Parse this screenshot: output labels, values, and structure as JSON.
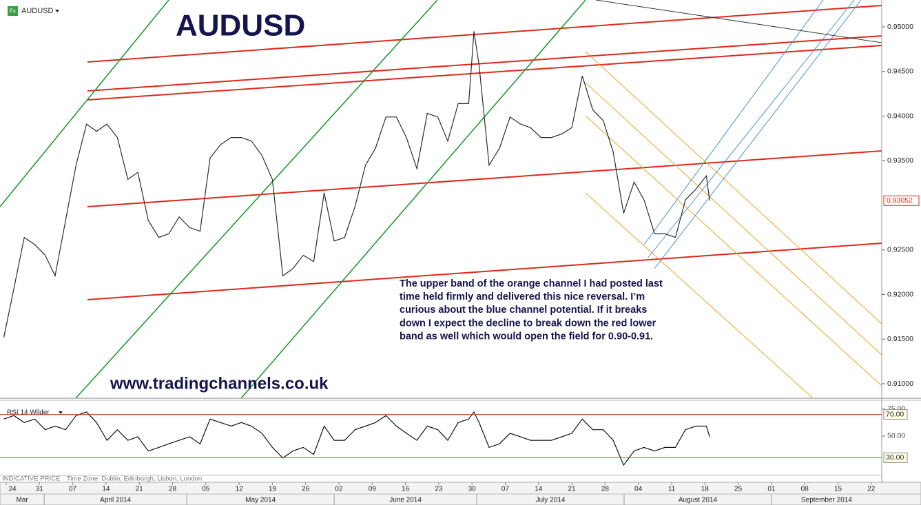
{
  "header": {
    "symbol": "AUDUSD",
    "icon": "Fx"
  },
  "chart_data": [
    {
      "type": "line",
      "title": "AUDUSD",
      "annotation": [
        "The upper band of the orange channel I had posted last",
        "time held firmly and delivered this nice reversal. I’m",
        "curious about the blue channel potential. If it breaks",
        "down I expect the decline to break down the red lower",
        "band as well which would open the field for 0.90-0.91."
      ],
      "watermark": "www.tradingchannels.co.uk",
      "color": "#2b2b2b",
      "x": [
        -7.5,
        -5.4,
        -3.2,
        -1.0,
        1.2,
        3.3,
        5.5,
        7.7,
        9.9,
        12.0,
        14.2,
        16.4,
        18.6,
        20.7,
        22.9,
        25.1,
        27.2,
        29.4,
        31.6,
        33.8,
        35.9,
        38.1,
        40.3,
        42.5,
        44.6,
        46.8,
        49.0,
        51.2,
        53.3,
        55.5,
        57.7,
        59.9,
        62.0,
        64.2,
        66.4,
        68.6,
        70.7,
        72.9,
        75.1,
        77.2,
        79.4,
        81.6,
        83.8,
        85.9,
        88.1,
        90.3,
        91.4,
        92.5,
        94.6,
        96.8,
        99.0,
        101.2,
        103.3,
        105.5,
        107.7,
        109.9,
        112.0,
        114.2,
        116.4,
        118.6,
        120.7,
        122.9,
        125.1,
        127.2,
        129.4,
        131.6,
        133.8,
        135.9,
        138.1,
        140.3,
        141.0
      ],
      "values": [
        0.9152,
        0.9206,
        0.9264,
        0.9256,
        0.9244,
        0.9221,
        0.9283,
        0.9345,
        0.9391,
        0.9383,
        0.9391,
        0.9376,
        0.9329,
        0.9337,
        0.9283,
        0.9264,
        0.9268,
        0.9287,
        0.9275,
        0.9271,
        0.9353,
        0.9368,
        0.9376,
        0.9376,
        0.9372,
        0.9356,
        0.9329,
        0.9221,
        0.9229,
        0.9244,
        0.9237,
        0.9314,
        0.926,
        0.9264,
        0.9299,
        0.9345,
        0.9364,
        0.9399,
        0.9399,
        0.9376,
        0.9341,
        0.9403,
        0.9399,
        0.9372,
        0.9414,
        0.9414,
        0.9495,
        0.9457,
        0.9345,
        0.9364,
        0.9399,
        0.9391,
        0.9387,
        0.9376,
        0.9376,
        0.938,
        0.9387,
        0.9445,
        0.9407,
        0.9395,
        0.936,
        0.9291,
        0.9326,
        0.9306,
        0.9268,
        0.9268,
        0.9264,
        0.9306,
        0.9318,
        0.9333,
        0.93052
      ],
      "last_price": {
        "value": 0.93052,
        "label": "0.93052"
      },
      "ylim": [
        0.90838,
        0.95301
      ],
      "yticks": [
        {
          "value": 0.91,
          "label": "0.91000"
        },
        {
          "value": 0.915,
          "label": "0.91500"
        },
        {
          "value": 0.92,
          "label": "0.92000"
        },
        {
          "value": 0.925,
          "label": "0.92500"
        },
        {
          "value": 0.935,
          "label": "0.93500"
        },
        {
          "value": 0.94,
          "label": "0.94000"
        },
        {
          "value": 0.945,
          "label": "0.94500"
        },
        {
          "value": 0.95,
          "label": "0.95000"
        }
      ],
      "xlim": [
        -8.3,
        177.2
      ],
      "xticks": [
        {
          "value": -7,
          "label": "24"
        },
        {
          "value": 0,
          "label": "31"
        },
        {
          "value": 7,
          "label": "07"
        },
        {
          "value": 14,
          "label": "14"
        },
        {
          "value": 21,
          "label": "21"
        },
        {
          "value": 28,
          "label": "28"
        },
        {
          "value": 35,
          "label": "05"
        },
        {
          "value": 42,
          "label": "12"
        },
        {
          "value": 49,
          "label": "19"
        },
        {
          "value": 56,
          "label": "26"
        },
        {
          "value": 63,
          "label": "02"
        },
        {
          "value": 70,
          "label": "09"
        },
        {
          "value": 77,
          "label": "16"
        },
        {
          "value": 84,
          "label": "23"
        },
        {
          "value": 91,
          "label": "30"
        },
        {
          "value": 98,
          "label": "07"
        },
        {
          "value": 105,
          "label": "14"
        },
        {
          "value": 112,
          "label": "21"
        },
        {
          "value": 119,
          "label": "28"
        },
        {
          "value": 126,
          "label": "04"
        },
        {
          "value": 133,
          "label": "11"
        },
        {
          "value": 140,
          "label": "18"
        },
        {
          "value": 147,
          "label": "25"
        },
        {
          "value": 154,
          "label": "01"
        },
        {
          "value": 161,
          "label": "08"
        },
        {
          "value": 168,
          "label": "15"
        },
        {
          "value": 175,
          "label": "22"
        }
      ],
      "months": [
        {
          "value": -30,
          "label": "Mar"
        },
        {
          "value": 1,
          "label": "April 2014"
        },
        {
          "value": 31,
          "label": "May 2014"
        },
        {
          "value": 62,
          "label": "June 2014"
        },
        {
          "value": 92,
          "label": "July 2014"
        },
        {
          "value": 123,
          "label": "August 2014"
        },
        {
          "value": 154,
          "label": "September 2014"
        }
      ],
      "grid": false
    },
    {
      "type": "line",
      "indicator": "RSI 14 Wilder",
      "color": "#111111",
      "x": [
        -7.5,
        -5.4,
        -3.2,
        -1.0,
        1.2,
        3.3,
        5.5,
        7.7,
        9.9,
        12.0,
        14.2,
        16.4,
        18.6,
        20.7,
        22.9,
        25.1,
        27.2,
        29.4,
        31.6,
        33.8,
        35.9,
        38.1,
        40.3,
        42.5,
        44.6,
        46.8,
        49.0,
        51.2,
        53.3,
        55.5,
        57.7,
        59.9,
        62.0,
        64.2,
        66.4,
        68.6,
        70.7,
        72.9,
        75.1,
        77.2,
        79.4,
        81.6,
        83.8,
        85.9,
        88.1,
        90.3,
        91.4,
        92.5,
        94.6,
        96.8,
        99.0,
        101.2,
        103.3,
        105.5,
        107.7,
        109.9,
        112.0,
        114.2,
        116.4,
        118.6,
        120.7,
        122.9,
        125.1,
        127.2,
        129.4,
        131.6,
        133.8,
        135.9,
        138.1,
        140.3,
        141.0
      ],
      "values": [
        65.7,
        69.0,
        62.5,
        65.7,
        55.9,
        59.2,
        55.9,
        69.0,
        72.3,
        62.5,
        46.1,
        55.9,
        46.1,
        49.3,
        36.2,
        39.5,
        42.8,
        46.1,
        49.3,
        42.8,
        65.7,
        62.5,
        59.2,
        62.5,
        59.2,
        52.6,
        39.5,
        29.7,
        36.2,
        39.5,
        33.0,
        59.2,
        46.1,
        46.1,
        55.9,
        59.2,
        62.5,
        69.0,
        59.2,
        52.6,
        46.1,
        59.2,
        55.9,
        46.1,
        62.5,
        65.7,
        72.3,
        62.5,
        39.5,
        42.8,
        52.6,
        49.3,
        46.1,
        46.1,
        46.1,
        49.3,
        52.6,
        65.7,
        55.9,
        55.9,
        46.1,
        23.1,
        36.2,
        39.5,
        36.2,
        39.5,
        39.5,
        55.9,
        59.2,
        59.2,
        49.3
      ],
      "xlim": [
        -8.3,
        177.2
      ],
      "ylim": [
        13.6,
        82.5
      ],
      "yticks": [
        {
          "value": 75,
          "label": "75.00"
        },
        {
          "value": 50,
          "label": "50.00"
        }
      ],
      "levels": [
        {
          "value": 70,
          "label": "70.00",
          "color": "#c0392b"
        },
        {
          "value": 30,
          "label": "30.00",
          "color": "#2e9e3e"
        }
      ]
    }
  ],
  "footer": {
    "price_type": "INDICATIVE PRICE",
    "timezone": "Time Zone: Dublin, Edinburgh, Lisbon, London"
  }
}
